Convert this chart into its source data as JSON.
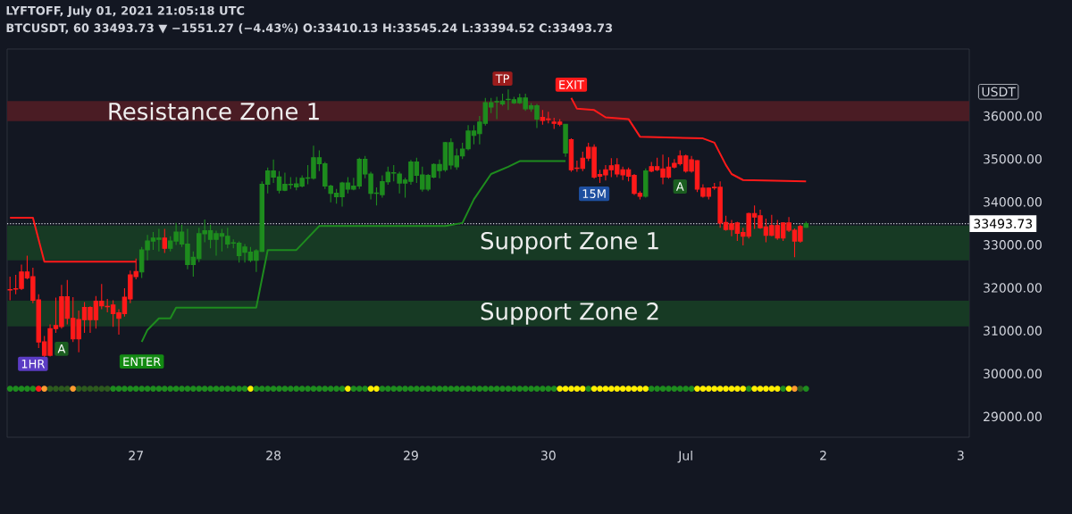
{
  "chart_data": {
    "type": "candlestick",
    "title": "LYFTOFF, July 01, 2021 21:05:18 UTC",
    "subtitle": "BTCUSDT, 60  33493.73 ▼ −1551.27 (−4.43%) O:33410.13 H:33545.24 L:33394.52 C:33493.73",
    "ylabel": "USDT",
    "x": [
      "2021-06-26T02:00",
      "2021-06-26T03:00",
      "2021-06-26T04:00",
      "2021-06-26T05:00",
      "2021-06-26T06:00",
      "2021-06-26T07:00",
      "2021-06-26T08:00",
      "2021-06-26T09:00",
      "2021-06-26T10:00",
      "2021-06-26T11:00",
      "2021-06-26T12:00",
      "2021-06-26T13:00",
      "2021-06-26T14:00",
      "2021-06-26T15:00",
      "2021-06-26T16:00",
      "2021-06-26T17:00",
      "2021-06-26T18:00",
      "2021-06-26T19:00",
      "2021-06-26T20:00",
      "2021-06-26T21:00",
      "2021-06-26T22:00",
      "2021-06-26T23:00",
      "2021-06-27T00:00",
      "2021-06-27T01:00",
      "2021-06-27T02:00",
      "2021-06-27T03:00",
      "2021-06-27T04:00",
      "2021-06-27T05:00",
      "2021-06-27T06:00",
      "2021-06-27T07:00",
      "2021-06-27T08:00",
      "2021-06-27T09:00",
      "2021-06-27T10:00",
      "2021-06-27T11:00",
      "2021-06-27T12:00",
      "2021-06-27T13:00",
      "2021-06-27T14:00",
      "2021-06-27T15:00",
      "2021-06-27T16:00",
      "2021-06-27T17:00",
      "2021-06-27T18:00",
      "2021-06-27T19:00",
      "2021-06-27T20:00",
      "2021-06-27T21:00",
      "2021-06-27T22:00",
      "2021-06-27T23:00",
      "2021-06-28T00:00",
      "2021-06-28T01:00",
      "2021-06-28T02:00",
      "2021-06-28T03:00",
      "2021-06-28T04:00",
      "2021-06-28T05:00",
      "2021-06-28T06:00",
      "2021-06-28T07:00",
      "2021-06-28T08:00",
      "2021-06-28T09:00",
      "2021-06-28T10:00",
      "2021-06-28T11:00",
      "2021-06-28T12:00",
      "2021-06-28T13:00",
      "2021-06-28T14:00",
      "2021-06-28T15:00",
      "2021-06-28T16:00",
      "2021-06-28T17:00",
      "2021-06-28T18:00",
      "2021-06-28T19:00",
      "2021-06-28T20:00",
      "2021-06-28T21:00",
      "2021-06-28T22:00",
      "2021-06-28T23:00",
      "2021-06-29T00:00",
      "2021-06-29T01:00",
      "2021-06-29T02:00",
      "2021-06-29T03:00",
      "2021-06-29T04:00",
      "2021-06-29T05:00",
      "2021-06-29T06:00",
      "2021-06-29T07:00",
      "2021-06-29T08:00",
      "2021-06-29T09:00",
      "2021-06-29T10:00",
      "2021-06-29T11:00",
      "2021-06-29T12:00",
      "2021-06-29T13:00",
      "2021-06-29T14:00",
      "2021-06-29T15:00",
      "2021-06-29T16:00",
      "2021-06-29T17:00",
      "2021-06-29T18:00",
      "2021-06-29T19:00",
      "2021-06-29T20:00",
      "2021-06-29T21:00",
      "2021-06-29T22:00",
      "2021-06-29T23:00",
      "2021-06-30T00:00",
      "2021-06-30T01:00",
      "2021-06-30T02:00",
      "2021-06-30T03:00",
      "2021-06-30T04:00",
      "2021-06-30T05:00",
      "2021-06-30T06:00",
      "2021-06-30T07:00",
      "2021-06-30T08:00",
      "2021-06-30T09:00",
      "2021-06-30T10:00",
      "2021-06-30T11:00",
      "2021-06-30T12:00",
      "2021-06-30T13:00",
      "2021-06-30T14:00",
      "2021-06-30T15:00",
      "2021-06-30T16:00",
      "2021-06-30T17:00",
      "2021-06-30T18:00",
      "2021-06-30T19:00",
      "2021-06-30T20:00",
      "2021-06-30T21:00",
      "2021-06-30T22:00",
      "2021-06-30T23:00",
      "2021-07-01T00:00",
      "2021-07-01T01:00",
      "2021-07-01T02:00",
      "2021-07-01T03:00",
      "2021-07-01T04:00",
      "2021-07-01T05:00",
      "2021-07-01T06:00",
      "2021-07-01T07:00",
      "2021-07-01T08:00",
      "2021-07-01T09:00",
      "2021-07-01T10:00",
      "2021-07-01T11:00",
      "2021-07-01T12:00",
      "2021-07-01T13:00",
      "2021-07-01T14:00",
      "2021-07-01T15:00",
      "2021-07-01T16:00",
      "2021-07-01T17:00",
      "2021-07-01T18:00",
      "2021-07-01T19:00",
      "2021-07-01T20:00",
      "2021-07-01T21:00"
    ],
    "ohlc": [
      [
        31960,
        32260,
        31710,
        31950
      ],
      [
        31980,
        32300,
        31850,
        31970
      ],
      [
        32370,
        32540,
        31950,
        31985
      ],
      [
        32370,
        32750,
        32200,
        32230
      ],
      [
        32260,
        32470,
        31640,
        31710
      ],
      [
        31720,
        31850,
        30600,
        30740
      ],
      [
        30740,
        30880,
        30390,
        30430
      ],
      [
        31050,
        31150,
        30400,
        30430
      ],
      [
        31120,
        31770,
        30950,
        31050
      ],
      [
        31790,
        32070,
        31050,
        31100
      ],
      [
        31790,
        32180,
        31150,
        31290
      ],
      [
        31290,
        31780,
        30740,
        30810
      ],
      [
        31260,
        31470,
        30500,
        30810
      ],
      [
        31540,
        31670,
        30950,
        31260
      ],
      [
        31540,
        31570,
        30950,
        31260
      ],
      [
        31690,
        31810,
        31050,
        31260
      ],
      [
        31690,
        32090,
        31500,
        31580
      ],
      [
        31570,
        31740,
        31430,
        31560
      ],
      [
        31600,
        31710,
        31090,
        31400
      ],
      [
        31420,
        31500,
        30910,
        31290
      ],
      [
        31780,
        31990,
        31330,
        31400
      ],
      [
        32300,
        32400,
        31640,
        31740
      ],
      [
        32380,
        32680,
        32200,
        32260
      ],
      [
        32370,
        32950,
        32230,
        32885
      ],
      [
        32885,
        33230,
        32640,
        33090
      ],
      [
        33090,
        33300,
        32885,
        33160
      ],
      [
        33130,
        33370,
        32850,
        33160
      ],
      [
        33160,
        33370,
        32810,
        32920
      ],
      [
        32920,
        33200,
        32850,
        33090
      ],
      [
        33090,
        33510,
        33000,
        33300
      ],
      [
        33020,
        33470,
        32950,
        33300
      ],
      [
        32540,
        33370,
        32430,
        33020
      ],
      [
        32540,
        32850,
        32260,
        32710
      ],
      [
        32680,
        33400,
        32600,
        33260
      ],
      [
        33260,
        33590,
        33060,
        33330
      ],
      [
        33130,
        33470,
        32920,
        33330
      ],
      [
        33130,
        33330,
        32750,
        33260
      ],
      [
        33200,
        33370,
        32850,
        33260
      ],
      [
        33020,
        33400,
        32920,
        33200
      ],
      [
        33040,
        33130,
        32920,
        33050
      ],
      [
        32750,
        33080,
        32590,
        33040
      ],
      [
        32830,
        33020,
        32590,
        32950
      ],
      [
        32640,
        32950,
        32600,
        32830
      ],
      [
        32640,
        32900,
        32370,
        32860
      ],
      [
        32850,
        34480,
        32830,
        34410
      ],
      [
        34410,
        34800,
        34200,
        34720
      ],
      [
        34580,
        34990,
        34440,
        34720
      ],
      [
        34270,
        34720,
        34200,
        34580
      ],
      [
        34270,
        34680,
        34250,
        34410
      ],
      [
        34400,
        34580,
        34300,
        34410
      ],
      [
        34350,
        34580,
        34270,
        34420
      ],
      [
        34370,
        34620,
        34340,
        34550
      ],
      [
        34550,
        34860,
        34410,
        34560
      ],
      [
        34550,
        35310,
        34520,
        35030
      ],
      [
        34890,
        35200,
        34720,
        35030
      ],
      [
        34370,
        34930,
        34300,
        34890
      ],
      [
        34200,
        34400,
        33990,
        34370
      ],
      [
        34120,
        34300,
        33960,
        34200
      ],
      [
        34120,
        34470,
        33890,
        34440
      ],
      [
        34300,
        34580,
        34200,
        34440
      ],
      [
        34300,
        34560,
        34270,
        34370
      ],
      [
        34370,
        35030,
        34300,
        34990
      ],
      [
        34650,
        35070,
        34550,
        34990
      ],
      [
        34200,
        34700,
        34060,
        34650
      ],
      [
        34200,
        34340,
        33920,
        34210
      ],
      [
        34170,
        34620,
        34100,
        34470
      ],
      [
        34470,
        34820,
        34400,
        34690
      ],
      [
        34670,
        34860,
        34480,
        34680
      ],
      [
        34440,
        34700,
        34200,
        34650
      ],
      [
        34440,
        34560,
        34100,
        34510
      ],
      [
        34480,
        34980,
        34400,
        34930
      ],
      [
        34620,
        35030,
        34440,
        34930
      ],
      [
        34300,
        34820,
        34240,
        34630
      ],
      [
        34300,
        34650,
        34250,
        34620
      ],
      [
        34580,
        34900,
        34550,
        34870
      ],
      [
        34730,
        34990,
        34550,
        34870
      ],
      [
        34750,
        35400,
        34700,
        35380
      ],
      [
        34860,
        35480,
        34760,
        35380
      ],
      [
        34820,
        35240,
        34750,
        35070
      ],
      [
        35070,
        35380,
        35000,
        35230
      ],
      [
        35240,
        35790,
        35200,
        35650
      ],
      [
        35550,
        35790,
        35340,
        35650
      ],
      [
        35590,
        36000,
        35340,
        35860
      ],
      [
        35830,
        36420,
        35780,
        36310
      ],
      [
        36210,
        36420,
        36070,
        36310
      ],
      [
        36330,
        36450,
        35930,
        36340
      ],
      [
        36280,
        36520,
        36240,
        36350
      ],
      [
        36380,
        36620,
        36140,
        36390
      ],
      [
        36310,
        36450,
        36280,
        36380
      ],
      [
        36310,
        36520,
        36280,
        36420
      ],
      [
        36170,
        36520,
        36120,
        36420
      ],
      [
        36170,
        36300,
        36100,
        36240
      ],
      [
        35930,
        36280,
        35720,
        36240
      ],
      [
        35970,
        36140,
        35800,
        35900
      ],
      [
        35930,
        36100,
        35830,
        35920
      ],
      [
        35860,
        35960,
        35700,
        35830
      ],
      [
        35860,
        35930,
        35760,
        35810
      ],
      [
        35140,
        35820,
        35050,
        35810
      ],
      [
        35450,
        35480,
        34700,
        34750
      ],
      [
        34790,
        34960,
        34700,
        34780
      ],
      [
        35020,
        35170,
        34720,
        34780
      ],
      [
        35270,
        35380,
        34950,
        35020
      ],
      [
        35270,
        35340,
        34540,
        34580
      ],
      [
        34640,
        34750,
        34440,
        34600
      ],
      [
        34750,
        34860,
        34500,
        34630
      ],
      [
        34840,
        35020,
        34580,
        34750
      ],
      [
        34860,
        35020,
        34580,
        34650
      ],
      [
        34750,
        34820,
        34510,
        34630
      ],
      [
        34750,
        34800,
        34480,
        34600
      ],
      [
        34620,
        34650,
        34160,
        34200
      ],
      [
        34200,
        34250,
        34060,
        34130
      ],
      [
        34130,
        34780,
        34100,
        34720
      ],
      [
        34820,
        34930,
        34690,
        34720
      ],
      [
        34820,
        35030,
        34720,
        34750
      ],
      [
        34770,
        35100,
        34410,
        34580
      ],
      [
        34810,
        35040,
        34540,
        34580
      ],
      [
        34900,
        35000,
        34780,
        34810
      ],
      [
        35070,
        35200,
        34850,
        34890
      ],
      [
        35070,
        35100,
        34680,
        34720
      ],
      [
        34980,
        35070,
        34680,
        34720
      ],
      [
        34960,
        34980,
        34230,
        34300
      ],
      [
        34320,
        34410,
        34100,
        34130
      ],
      [
        34320,
        34340,
        34060,
        34130
      ],
      [
        34340,
        34440,
        34280,
        34330
      ],
      [
        34340,
        34480,
        33400,
        33510
      ],
      [
        33520,
        33680,
        33330,
        33360
      ],
      [
        33490,
        33580,
        33200,
        33360
      ],
      [
        33510,
        33540,
        33090,
        33270
      ],
      [
        33290,
        33400,
        32990,
        33200
      ],
      [
        33730,
        33750,
        33150,
        33200
      ],
      [
        33730,
        33920,
        33370,
        33650
      ],
      [
        33680,
        33820,
        33370,
        33400
      ],
      [
        33420,
        33610,
        33060,
        33220
      ],
      [
        33450,
        33700,
        33200,
        33220
      ],
      [
        33450,
        33580,
        33120,
        33160
      ],
      [
        33510,
        33530,
        33090,
        33160
      ],
      [
        33510,
        33650,
        33300,
        33340
      ],
      [
        33340,
        33380,
        32710,
        33090
      ],
      [
        33430,
        33470,
        33050,
        33090
      ],
      [
        33410.13,
        33545.24,
        33394.52,
        33493.73
      ]
    ],
    "colors": [
      "#ff1a1a",
      "#ff1a1a",
      "#ff1a1a",
      "#ff1a1a",
      "#ff1a1a",
      "#ff1a1a",
      "#ff1a1a",
      "#ff1a1a",
      "#ff1a1a",
      "#ff1a1a",
      "#ff1a1a",
      "#ff1a1a",
      "#ff1a1a",
      "#ff1a1a",
      "#ff1a1a",
      "#ff1a1a",
      "#ff1a1a",
      "#ff1a1a",
      "#ff1a1a",
      "#ff1a1a",
      "#ff1a1a",
      "#ff1a1a",
      "#ff1a1a",
      "#1e8c1e",
      "#1e8c1e",
      "#1e8c1e",
      "#1e8c1e",
      "#ff1a1a",
      "#1e8c1e",
      "#1e8c1e",
      "#1e8c1e",
      "#1e8c1e",
      "#1e8c1e",
      "#1e8c1e",
      "#1e8c1e",
      "#1e8c1e",
      "#1e8c1e",
      "#1e8c1e",
      "#1e8c1e",
      "#1e8c1e",
      "#1e8c1e",
      "#1e8c1e",
      "#1e8c1e",
      "#1e8c1e",
      "#1e8c1e",
      "#1e8c1e",
      "#1e8c1e",
      "#1e8c1e",
      "#1e8c1e",
      "#1e8c1e",
      "#1e8c1e",
      "#1e8c1e",
      "#1e8c1e",
      "#1e8c1e",
      "#1e8c1e",
      "#1e8c1e",
      "#1e8c1e",
      "#1e8c1e",
      "#1e8c1e",
      "#1e8c1e",
      "#1e8c1e",
      "#1e8c1e",
      "#1e8c1e",
      "#1e8c1e",
      "#1e8c1e",
      "#1e8c1e",
      "#1e8c1e",
      "#1e8c1e",
      "#1e8c1e",
      "#1e8c1e",
      "#1e8c1e",
      "#1e8c1e",
      "#1e8c1e",
      "#1e8c1e",
      "#1e8c1e",
      "#1e8c1e",
      "#1e8c1e",
      "#1e8c1e",
      "#1e8c1e",
      "#1e8c1e",
      "#1e8c1e",
      "#1e8c1e",
      "#1e8c1e",
      "#1e8c1e",
      "#1e8c1e",
      "#1e8c1e",
      "#1e8c1e",
      "#1e8c1e",
      "#1e8c1e",
      "#1e8c1e",
      "#1e8c1e",
      "#1e8c1e",
      "#1e8c1e",
      "#ff1a1a",
      "#ff1a1a",
      "#ff1a1a",
      "#ff1a1a",
      "#1e8c1e",
      "#ff1a1a",
      "#ff1a1a",
      "#ff1a1a",
      "#ff1a1a",
      "#ff1a1a",
      "#ff1a1a",
      "#ff1a1a",
      "#ff1a1a",
      "#ff1a1a",
      "#ff1a1a",
      "#ff1a1a",
      "#ff1a1a",
      "#ff1a1a",
      "#1e8c1e",
      "#ff1a1a",
      "#ff1a1a",
      "#ff1a1a",
      "#ff1a1a",
      "#ff1a1a",
      "#ff1a1a",
      "#ff1a1a",
      "#ff1a1a",
      "#ff1a1a",
      "#ff1a1a",
      "#ff1a1a",
      "#ff1a1a",
      "#ff1a1a",
      "#ff1a1a",
      "#ff1a1a",
      "#ff1a1a",
      "#ff1a1a",
      "#ff1a1a",
      "#ff1a1a",
      "#ff1a1a",
      "#ff1a1a",
      "#ff1a1a",
      "#ff1a1a",
      "#ff1a1a",
      "#ff1a1a",
      "#ff1a1a",
      "#ff1a1a",
      "#1e8c1e"
    ],
    "series": [
      {
        "type": "line",
        "color": "#ff1a1a",
        "x": [
          "2021-06-26T02:00",
          "2021-06-26T06:00",
          "2021-06-26T08:00",
          "2021-06-27T00:00"
        ],
        "values": [
          33630,
          33630,
          32610,
          32610
        ]
      },
      {
        "type": "line",
        "color": "#ff1a1a",
        "x": [
          "2021-06-30T04:00",
          "2021-06-30T05:00",
          "2021-06-30T08:00",
          "2021-06-30T10:00",
          "2021-06-30T14:00",
          "2021-06-30T16:00",
          "2021-07-01T03:00",
          "2021-07-01T05:00",
          "2021-07-01T07:00",
          "2021-07-01T08:00",
          "2021-07-01T10:00",
          "2021-07-01T21:00"
        ],
        "values": [
          36420,
          36170,
          36140,
          35970,
          35930,
          35520,
          35480,
          35380,
          34860,
          34650,
          34510,
          34480
        ]
      },
      {
        "type": "line",
        "color": "#1e8c1e",
        "x": [
          "2021-06-27T01:00",
          "2021-06-27T02:00",
          "2021-06-27T04:00",
          "2021-06-27T06:00",
          "2021-06-27T07:00",
          "2021-06-27T21:00",
          "2021-06-27T23:00",
          "2021-06-28T04:00",
          "2021-06-28T08:00",
          "2021-06-29T06:00",
          "2021-06-29T09:00",
          "2021-06-29T11:00",
          "2021-06-29T14:00",
          "2021-06-29T17:00",
          "2021-06-29T19:00",
          "2021-06-30T03:00"
        ],
        "values": [
          30740,
          31020,
          31290,
          31290,
          31540,
          31540,
          32880,
          32880,
          33440,
          33440,
          33510,
          34060,
          34650,
          34820,
          34950,
          34950
        ]
      },
      {
        "type": "scatter",
        "marker": "circle",
        "values": [
          29650,
          29650,
          29650,
          29650,
          29650,
          29650,
          29650,
          29650,
          29650,
          29650,
          29650,
          29650,
          29650,
          29650,
          29650,
          29650,
          29650,
          29650,
          29650,
          29650,
          29650,
          29650,
          29650,
          29650,
          29650,
          29650,
          29650,
          29650,
          29650,
          29650,
          29650,
          29650,
          29650,
          29650,
          29650,
          29650,
          29650,
          29650,
          29650,
          29650,
          29650,
          29650,
          29650,
          29650,
          29650,
          29650,
          29650,
          29650,
          29650,
          29650,
          29650,
          29650,
          29650,
          29650,
          29650,
          29650,
          29650,
          29650,
          29650,
          29650,
          29650,
          29650,
          29650,
          29650,
          29650,
          29650,
          29650,
          29650,
          29650,
          29650,
          29650,
          29650,
          29650,
          29650,
          29650,
          29650,
          29650,
          29650,
          29650,
          29650,
          29650,
          29650,
          29650,
          29650,
          29650,
          29650,
          29650,
          29650,
          29650,
          29650,
          29650,
          29650,
          29650,
          29650,
          29650,
          29650,
          29650,
          29650,
          29650,
          29650,
          29650,
          29650,
          29650,
          29650,
          29650,
          29650,
          29650,
          29650,
          29650,
          29650,
          29650,
          29650,
          29650,
          29650,
          29650,
          29650,
          29650,
          29650,
          29650,
          29650,
          29650,
          29650,
          29650,
          29650,
          29650,
          29650,
          29650,
          29650,
          29650,
          29650,
          29650,
          29650,
          29650,
          29650,
          29650,
          29650,
          29650,
          29650,
          29650,
          29650
        ],
        "colors": [
          "#1e8c1e",
          "#1e8c1e",
          "#1e8c1e",
          "#1e8c1e",
          "#1e8c1e",
          "#ff1a1a",
          "#ff9b30",
          "#2d5a1e",
          "#2d5a1e",
          "#2d5a1e",
          "#2d5a1e",
          "#ff9b30",
          "#2d5a1e",
          "#2d5a1e",
          "#2d5a1e",
          "#2d5a1e",
          "#2d5a1e",
          "#2d5a1e",
          "#1e8c1e",
          "#1e8c1e",
          "#1e8c1e",
          "#1e8c1e",
          "#1e8c1e",
          "#1e8c1e",
          "#1e8c1e",
          "#1e8c1e",
          "#1e8c1e",
          "#1e8c1e",
          "#1e8c1e",
          "#1e8c1e",
          "#1e8c1e",
          "#1e8c1e",
          "#1e8c1e",
          "#1e8c1e",
          "#1e8c1e",
          "#1e8c1e",
          "#1e8c1e",
          "#1e8c1e",
          "#1e8c1e",
          "#1e8c1e",
          "#1e8c1e",
          "#1e8c1e",
          "#ffee00",
          "#1e8c1e",
          "#1e8c1e",
          "#1e8c1e",
          "#1e8c1e",
          "#1e8c1e",
          "#1e8c1e",
          "#1e8c1e",
          "#1e8c1e",
          "#1e8c1e",
          "#1e8c1e",
          "#1e8c1e",
          "#1e8c1e",
          "#1e8c1e",
          "#1e8c1e",
          "#1e8c1e",
          "#1e8c1e",
          "#ffee00",
          "#1e8c1e",
          "#1e8c1e",
          "#1e8c1e",
          "#ffee00",
          "#ffee00",
          "#1e8c1e",
          "#1e8c1e",
          "#1e8c1e",
          "#1e8c1e",
          "#1e8c1e",
          "#1e8c1e",
          "#1e8c1e",
          "#1e8c1e",
          "#1e8c1e",
          "#1e8c1e",
          "#1e8c1e",
          "#1e8c1e",
          "#1e8c1e",
          "#1e8c1e",
          "#1e8c1e",
          "#1e8c1e",
          "#1e8c1e",
          "#1e8c1e",
          "#1e8c1e",
          "#1e8c1e",
          "#1e8c1e",
          "#1e8c1e",
          "#1e8c1e",
          "#1e8c1e",
          "#1e8c1e",
          "#1e8c1e",
          "#1e8c1e",
          "#1e8c1e",
          "#1e8c1e",
          "#1e8c1e",
          "#1e8c1e",
          "#ffee00",
          "#ffee00",
          "#ffee00",
          "#ffee00",
          "#ffee00",
          "#1e8c1e",
          "#ffee00",
          "#ffee00",
          "#ffee00",
          "#ffee00",
          "#ffee00",
          "#ffee00",
          "#ffee00",
          "#ffee00",
          "#ffee00",
          "#ffee00",
          "#1e8c1e",
          "#1e8c1e",
          "#1e8c1e",
          "#1e8c1e",
          "#1e8c1e",
          "#1e8c1e",
          "#1e8c1e",
          "#1e8c1e",
          "#ffee00",
          "#ffee00",
          "#ffee00",
          "#ffee00",
          "#ffee00",
          "#ffee00",
          "#ffee00",
          "#ffee00",
          "#ffee00",
          "#1e8c1e",
          "#ffee00",
          "#ffee00",
          "#ffee00",
          "#ffee00",
          "#ffee00",
          "#1e8c1e",
          "#ffee00",
          "#ff9b30",
          "#2d5a1e",
          "#1e8c1e"
        ]
      }
    ],
    "bands": [
      {
        "axis": "y",
        "from": 35880,
        "to": 36350,
        "label": "Resistance Zone 1",
        "color": "#4a1c24"
      },
      {
        "axis": "y",
        "from": 32640,
        "to": 33450,
        "label": "Support Zone 1",
        "color": "#173a24"
      },
      {
        "axis": "y",
        "from": 31100,
        "to": 31700,
        "label": "Support Zone 2",
        "color": "#173a24"
      }
    ],
    "ref_lines": [
      {
        "axis": "y",
        "value": 33493.73,
        "label": "33493.73",
        "color": "#d1d4dc",
        "line_style": "dotted"
      }
    ],
    "annotations": [
      {
        "text": "TP",
        "x": "2021-06-29T16:00",
        "y": 36870
      },
      {
        "text": "EXIT",
        "x": "2021-06-30T04:00",
        "y": 36730
      },
      {
        "text": "15M",
        "x": "2021-06-30T08:00",
        "y": 34190
      },
      {
        "text": "A",
        "x": "2021-06-30T23:00",
        "y": 34360
      },
      {
        "text": "1HR",
        "x": "2021-06-26T06:00",
        "y": 30230
      },
      {
        "text": "A",
        "x": "2021-06-26T11:00",
        "y": 30580
      },
      {
        "text": "ENTER",
        "x": "2021-06-27T01:00",
        "y": 30740
      }
    ],
    "xlim": [
      "2021-06-26T01:30",
      "2021-07-03T01:30"
    ],
    "xticks": [
      {
        "value": "2021-06-27",
        "label": "27"
      },
      {
        "value": "2021-06-28",
        "label": "28"
      },
      {
        "value": "2021-06-29",
        "label": "29"
      },
      {
        "value": "2021-06-30",
        "label": "30"
      },
      {
        "value": "2021-07-01",
        "label": "Jul"
      },
      {
        "value": "2021-07-02",
        "label": "2"
      },
      {
        "value": "2021-07-03",
        "label": "3"
      }
    ],
    "ylim": [
      28520,
      37560
    ],
    "yticks": [
      {
        "value": 29000,
        "label": "29000.00"
      },
      {
        "value": 30000,
        "label": "30000.00"
      },
      {
        "value": 31000,
        "label": "31000.00"
      },
      {
        "value": 32000,
        "label": "32000.00"
      },
      {
        "value": 33000,
        "label": "33000.00"
      },
      {
        "value": 34000,
        "label": "34000.00"
      },
      {
        "value": 35000,
        "label": "35000.00"
      },
      {
        "value": 36000,
        "label": "36000.00"
      }
    ]
  }
}
